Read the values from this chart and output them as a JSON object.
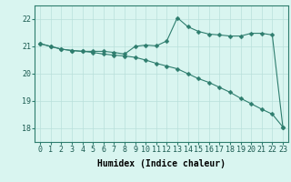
{
  "x": [
    0,
    1,
    2,
    3,
    4,
    5,
    6,
    7,
    8,
    9,
    10,
    11,
    12,
    13,
    14,
    15,
    16,
    17,
    18,
    19,
    20,
    21,
    22,
    23
  ],
  "y_line1": [
    21.1,
    21.0,
    20.9,
    20.85,
    20.82,
    20.82,
    20.82,
    20.78,
    20.72,
    21.0,
    21.05,
    21.02,
    21.2,
    22.05,
    21.72,
    21.55,
    21.45,
    21.42,
    21.38,
    21.38,
    21.48,
    21.48,
    21.42,
    18.05
  ],
  "y_line2": [
    21.1,
    21.0,
    20.9,
    20.85,
    20.82,
    20.78,
    20.72,
    20.68,
    20.65,
    20.6,
    20.5,
    20.38,
    20.28,
    20.18,
    20.0,
    19.82,
    19.68,
    19.5,
    19.32,
    19.1,
    18.9,
    18.7,
    18.52,
    18.05
  ],
  "line_color": "#2e7d6e",
  "marker": "D",
  "marker_size": 2.5,
  "bg_color": "#d9f5f0",
  "grid_color": "#b8e0db",
  "xlabel": "Humidex (Indice chaleur)",
  "ylim": [
    17.5,
    22.5
  ],
  "xlim": [
    -0.5,
    23.5
  ],
  "yticks": [
    18,
    19,
    20,
    21,
    22
  ],
  "xticks": [
    0,
    1,
    2,
    3,
    4,
    5,
    6,
    7,
    8,
    9,
    10,
    11,
    12,
    13,
    14,
    15,
    16,
    17,
    18,
    19,
    20,
    21,
    22,
    23
  ],
  "xlabel_fontsize": 7,
  "tick_fontsize": 6
}
